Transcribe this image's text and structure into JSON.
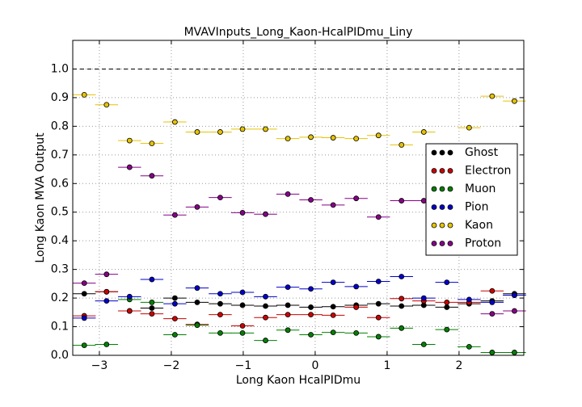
{
  "chart_data": {
    "type": "scatter",
    "title": "MVAVInputs_Long_Kaon-HcalPIDmu_Liny",
    "x_label": "Long Kaon HcalPIDmu",
    "y_label": "Long Kaon MVA Output",
    "x": [
      -3.21,
      -2.9,
      -2.58,
      -2.27,
      -1.95,
      -1.64,
      -1.32,
      -1.01,
      -0.69,
      -0.38,
      -0.06,
      0.25,
      0.57,
      0.88,
      1.2,
      1.51,
      1.83,
      2.14,
      2.46,
      2.77
    ],
    "xerr": 0.16,
    "xlim": [
      -3.37,
      2.9
    ],
    "ylim": [
      0,
      1.1
    ],
    "xticks": [
      {
        "value": -3,
        "label": "−3"
      },
      {
        "value": -2,
        "label": "−2"
      },
      {
        "value": -1,
        "label": "−1"
      },
      0,
      1,
      2
    ],
    "yticks": [
      {
        "value": 0,
        "label": "0.0"
      },
      {
        "value": 0.1,
        "label": "0.1"
      },
      {
        "value": 0.2,
        "label": "0.2"
      },
      {
        "value": 0.3,
        "label": "0.3"
      },
      {
        "value": 0.4,
        "label": "0.4"
      },
      {
        "value": 0.5,
        "label": "0.5"
      },
      {
        "value": 0.6,
        "label": "0.6"
      },
      {
        "value": 0.7,
        "label": "0.7"
      },
      {
        "value": 0.8,
        "label": "0.8"
      },
      {
        "value": 0.9,
        "label": "0.9"
      },
      {
        "value": 1,
        "label": "1.0"
      }
    ],
    "reference_line": 1.0,
    "grid": true,
    "legend": "right",
    "series": [
      {
        "name": "Ghost",
        "color": "#000000",
        "values": [
          0.215,
          0.222,
          0.155,
          0.165,
          0.2,
          0.185,
          0.18,
          0.175,
          0.172,
          0.175,
          0.168,
          0.17,
          0.175,
          0.18,
          0.172,
          0.175,
          0.168,
          0.18,
          0.19,
          0.215
        ]
      },
      {
        "name": "Electron",
        "color": "#cc0000",
        "values": [
          0.138,
          0.222,
          0.155,
          0.145,
          0.128,
          0.108,
          0.142,
          0.103,
          0.132,
          0.142,
          0.142,
          0.14,
          0.168,
          0.132,
          0.198,
          0.19,
          0.185,
          0.185,
          0.225,
          0.21
        ]
      },
      {
        "name": "Muon",
        "color": "#008000",
        "values": [
          0.035,
          0.038,
          0.195,
          0.185,
          0.072,
          0.105,
          0.078,
          0.078,
          0.052,
          0.088,
          0.072,
          0.08,
          0.078,
          0.065,
          0.095,
          0.038,
          0.09,
          0.03,
          0.01,
          0.01
        ]
      },
      {
        "name": "Pion",
        "color": "#0000cc",
        "values": [
          0.13,
          0.19,
          0.205,
          0.265,
          0.18,
          0.235,
          0.215,
          0.22,
          0.205,
          0.238,
          0.232,
          0.255,
          0.24,
          0.258,
          0.275,
          0.2,
          0.255,
          0.195,
          0.185,
          0.21
        ]
      },
      {
        "name": "Kaon",
        "color": "#e6c300",
        "values": [
          0.91,
          0.875,
          0.75,
          0.74,
          0.815,
          0.78,
          0.78,
          0.79,
          0.79,
          0.757,
          0.762,
          0.76,
          0.757,
          0.768,
          0.735,
          0.78,
          null,
          0.795,
          0.905,
          0.888
        ]
      },
      {
        "name": "Proton",
        "color": "#880088",
        "values": [
          0.252,
          0.283,
          0.657,
          0.627,
          0.49,
          0.518,
          0.551,
          0.498,
          0.493,
          0.563,
          0.543,
          0.525,
          0.548,
          0.483,
          0.54,
          0.54,
          null,
          null,
          0.145,
          0.155
        ]
      }
    ]
  }
}
